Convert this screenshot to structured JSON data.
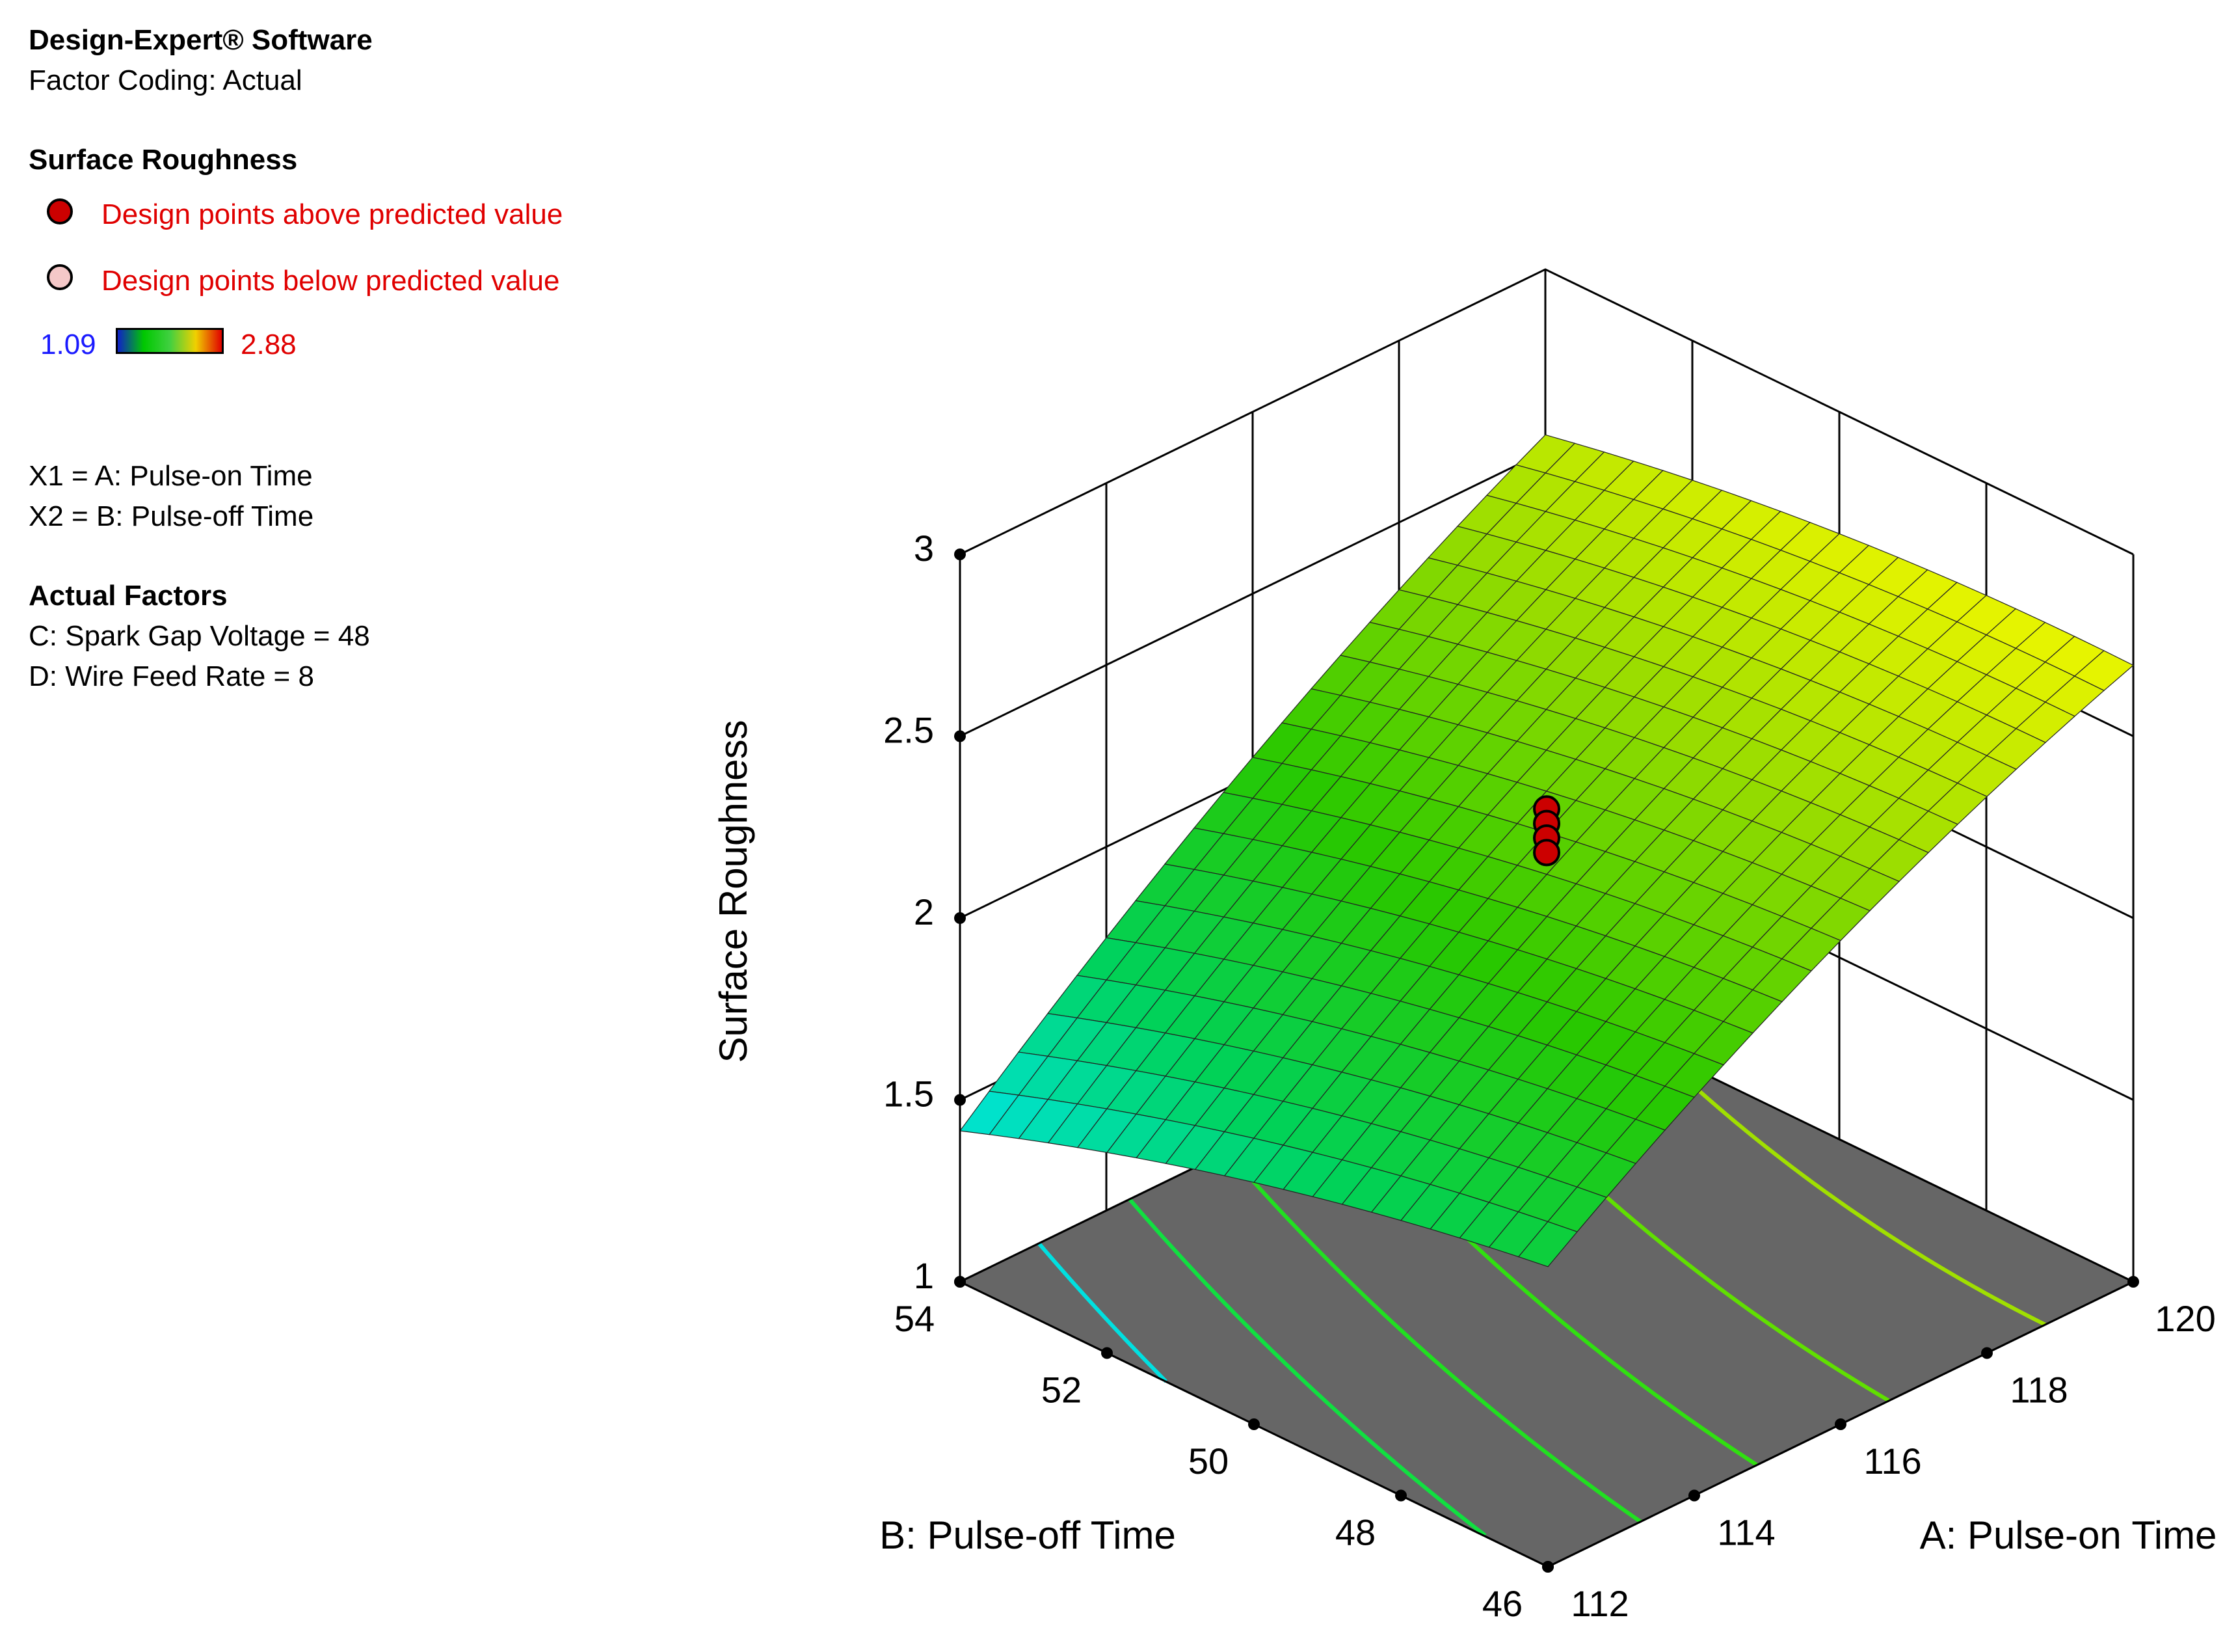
{
  "header": {
    "software": "Design-Expert® Software",
    "coding": "Factor Coding: Actual"
  },
  "legend": {
    "title": "Surface Roughness",
    "above_label": "Design points above predicted value",
    "below_label": "Design points below predicted value",
    "above_color": "#cc0000",
    "below_color": "#f4c8c8",
    "range_min": "1.09",
    "range_max": "2.88"
  },
  "factors": {
    "x1": "X1 = A: Pulse-on Time",
    "x2": "X2 = B: Pulse-off Time",
    "actual_title": "Actual Factors",
    "c": "C: Spark Gap Voltage = 48",
    "d": "D: Wire Feed Rate = 8"
  },
  "chart_data": {
    "type": "surface3d",
    "zlabel": "Surface Roughness",
    "xlabel": "A: Pulse-on Time",
    "ylabel": "B: Pulse-off Time",
    "xlim": [
      112,
      120
    ],
    "ylim": [
      46,
      54
    ],
    "zlim": [
      1,
      3
    ],
    "z_ticks": [
      "1",
      "1.5",
      "2",
      "2.5",
      "3"
    ],
    "a_ticks": [
      "112",
      "114",
      "116",
      "118",
      "120"
    ],
    "b_ticks": [
      "46",
      "48",
      "50",
      "52",
      "54"
    ],
    "corners": {
      "A112_B46": 1.83,
      "A112_B54": 1.42,
      "A120_B46": 2.7,
      "A120_B54": 2.55
    },
    "design_points_above": [
      {
        "A": 116,
        "B": 50,
        "value": 2.3
      },
      {
        "A": 116,
        "B": 50,
        "value": 2.26
      },
      {
        "A": 116,
        "B": 50,
        "value": 2.22
      },
      {
        "A": 116,
        "B": 50,
        "value": 2.18
      }
    ],
    "colorscale": [
      "#1020c8",
      "#00c8c8",
      "#00d000",
      "#60e000",
      "#f8f000",
      "#e00000"
    ]
  }
}
